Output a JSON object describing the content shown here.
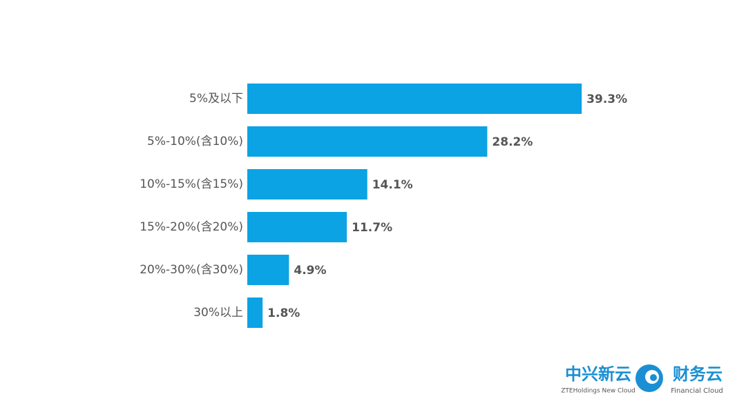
{
  "chart_data": {
    "type": "bar",
    "orientation": "horizontal",
    "categories": [
      "5%及以下",
      "5%-10%(含10%)",
      "10%-15%(含15%)",
      "15%-20%(含20%)",
      "20%-30%(含30%)",
      "30%以上"
    ],
    "values": [
      39.3,
      28.2,
      14.1,
      11.7,
      4.9,
      1.8
    ],
    "value_labels": [
      "39.3%",
      "28.2%",
      "14.1%",
      "11.7%",
      "4.9%",
      "1.8%"
    ],
    "color": "#0ba3e3"
  },
  "logo": {
    "brand": "中兴新云",
    "brand_sub": "ZTEHoldings New Cloud",
    "product": "财务云",
    "product_sub": "Financial Cloud"
  }
}
